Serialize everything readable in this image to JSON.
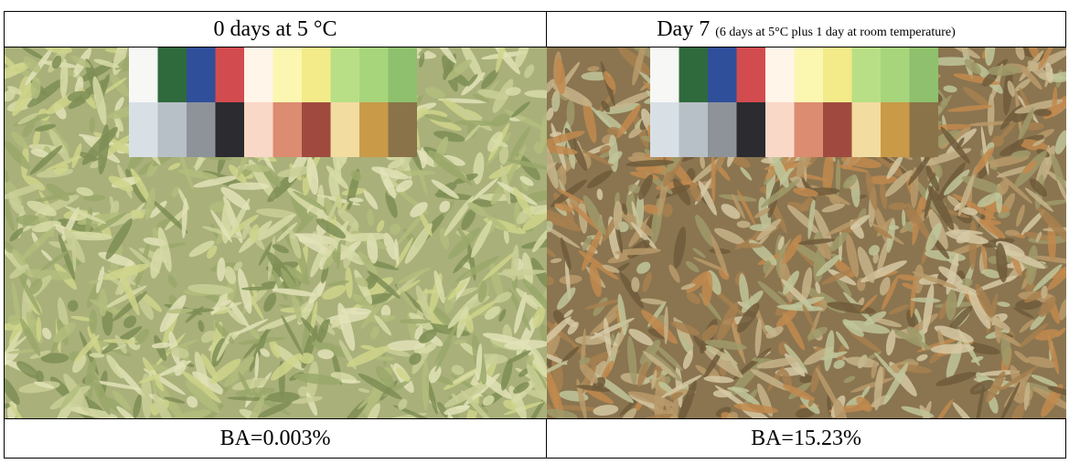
{
  "table": {
    "header": [
      {
        "text": "0 days at 5 °C"
      },
      {
        "text": "Day 7",
        "note": "(6 days at 5°C plus 1 day at room temperature)"
      }
    ],
    "footer": [
      "BA=0.003%",
      "BA=15.23%"
    ]
  }
}
